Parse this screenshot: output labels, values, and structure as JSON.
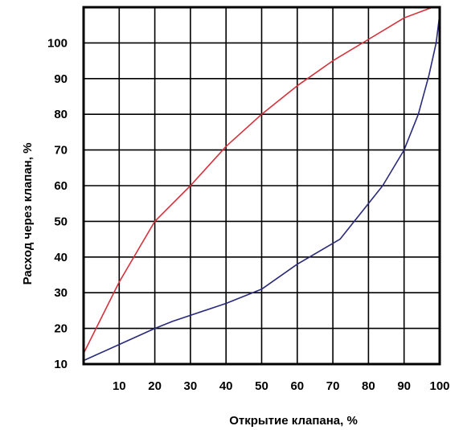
{
  "chart_data": {
    "type": "line",
    "title": "",
    "xlabel": "Открытие клапана, %",
    "ylabel": "Расход через клапан, %",
    "xlim": [
      0,
      100
    ],
    "ylim": [
      10,
      110
    ],
    "x_ticks": [
      10,
      20,
      30,
      40,
      50,
      60,
      70,
      80,
      90,
      100
    ],
    "y_ticks": [
      10,
      20,
      30,
      40,
      50,
      60,
      70,
      80,
      90,
      100
    ],
    "grid": true,
    "series": [
      {
        "color": "#d6303a",
        "points": [
          [
            0,
            13
          ],
          [
            10,
            33
          ],
          [
            20,
            50
          ],
          [
            30,
            60
          ],
          [
            40,
            71
          ],
          [
            50,
            80
          ],
          [
            60,
            88
          ],
          [
            70,
            95
          ],
          [
            80,
            101
          ],
          [
            90,
            107
          ],
          [
            98,
            110
          ]
        ]
      },
      {
        "color": "#2a2a7a",
        "points": [
          [
            0,
            11
          ],
          [
            10,
            15.5
          ],
          [
            20,
            20
          ],
          [
            25,
            22
          ],
          [
            40,
            27
          ],
          [
            50,
            31
          ],
          [
            60,
            38
          ],
          [
            72,
            45
          ],
          [
            84,
            60
          ],
          [
            90,
            70
          ],
          [
            94,
            80
          ],
          [
            97,
            91
          ],
          [
            99,
            100
          ],
          [
            100,
            108
          ]
        ]
      }
    ]
  }
}
